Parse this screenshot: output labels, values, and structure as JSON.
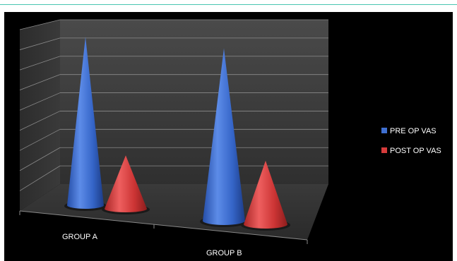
{
  "colors": {
    "pre_op": "#3f6fd0",
    "post_op": "#d63b3b",
    "background": "#000000",
    "top_rule": "#49c5b1"
  },
  "chart_data": {
    "type": "bar",
    "subtype": "3d-cone",
    "categories": [
      "GROUP A",
      "GROUP B"
    ],
    "series": [
      {
        "name": "PRE OP VAS",
        "values": [
          8.2,
          8.4
        ]
      },
      {
        "name": "POST OP VAS",
        "values": [
          2.6,
          3.1
        ]
      }
    ],
    "title": "",
    "xlabel": "",
    "ylabel": "",
    "ylim": [
      0,
      9
    ],
    "grid": true,
    "legend_position": "right"
  },
  "legend": {
    "items": [
      {
        "label": "PRE OP VAS"
      },
      {
        "label": "POST OP VAS"
      }
    ]
  }
}
